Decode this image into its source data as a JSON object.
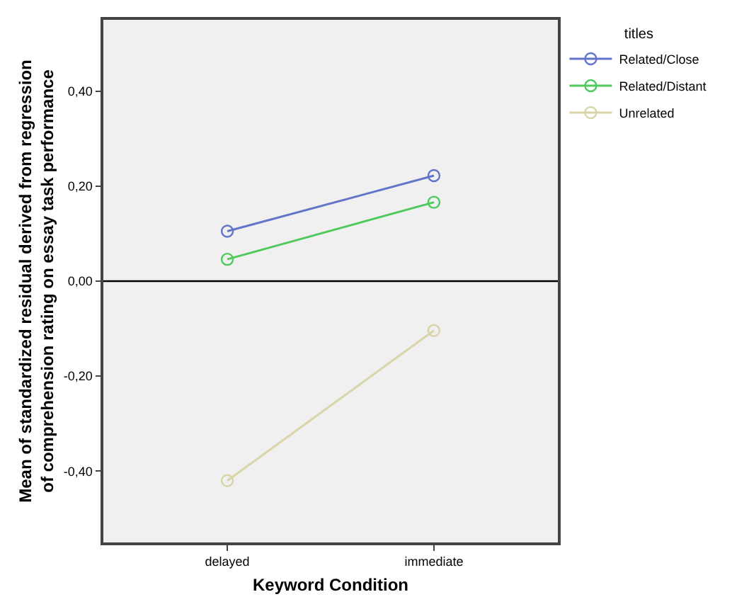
{
  "chart_data": {
    "type": "line",
    "xlabel": "Keyword Condition",
    "ylabel": "Mean of standardized residual derived from regression of comprehension rating on essay task performance",
    "legend_title": "titles",
    "categories": [
      "delayed",
      "immediate"
    ],
    "series": [
      {
        "name": "Related/Close",
        "color": "#6275c8",
        "values": [
          0.105,
          0.222
        ]
      },
      {
        "name": "Related/Distant",
        "color": "#4fc95c",
        "values": [
          0.046,
          0.166
        ]
      },
      {
        "name": "Unrelated",
        "color": "#d9d5a8",
        "values": [
          -0.42,
          -0.104
        ]
      }
    ],
    "ylim": [
      -0.55,
      0.55
    ],
    "yticks": [
      {
        "value": -0.4,
        "label": "-0,40"
      },
      {
        "value": -0.2,
        "label": "-0,20"
      },
      {
        "value": 0,
        "label": "0,00"
      },
      {
        "value": 0.2,
        "label": "0,20"
      },
      {
        "value": 0.4,
        "label": "0,40"
      }
    ],
    "ref_lines": [
      {
        "axis": "y",
        "value": 0,
        "color": "#000000"
      }
    ],
    "marker": "circle",
    "line_style": "solid",
    "grid": false,
    "legend": "top right"
  }
}
